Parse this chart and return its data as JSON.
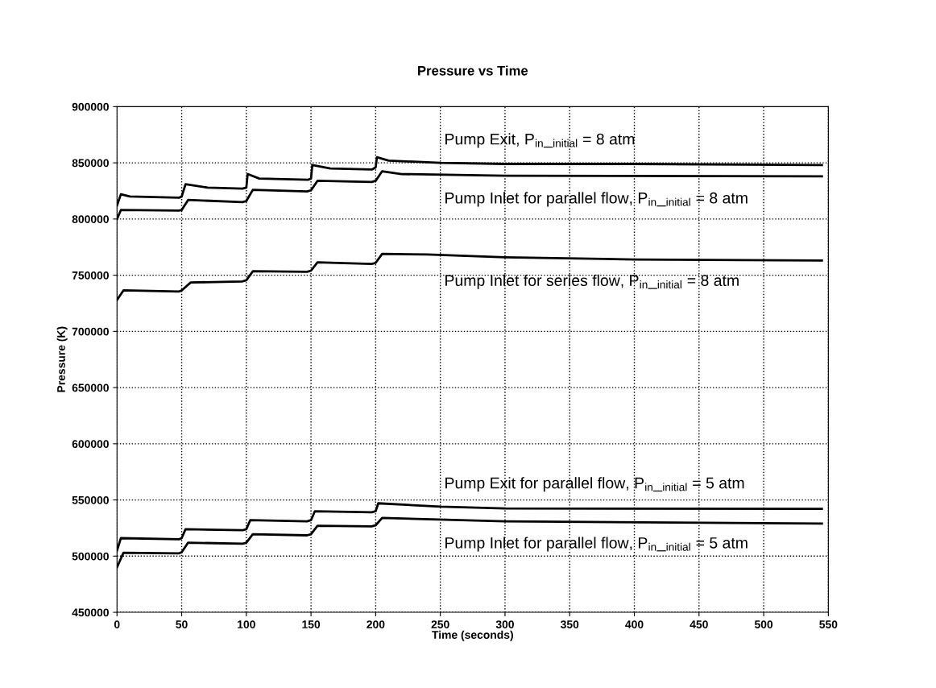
{
  "chart_data": {
    "type": "line",
    "title": "Pressure vs Time",
    "xlabel": "Time (seconds)",
    "ylabel": "Pressure (K)",
    "xlim": [
      0,
      550
    ],
    "xticks": [
      0,
      50,
      100,
      150,
      200,
      250,
      300,
      350,
      400,
      450,
      500,
      550
    ],
    "ylim": [
      450000,
      900000
    ],
    "yticks": [
      450000,
      500000,
      550000,
      600000,
      650000,
      700000,
      750000,
      800000,
      850000,
      900000
    ],
    "grid": true,
    "legend": false,
    "marker": "none",
    "line_style": "solid",
    "series": [
      {
        "name": "Pump Exit, P$_{in}$_$_{initial}$ = 8 atm",
        "color": "#000000",
        "x": [
          0,
          3,
          10,
          48,
          50,
          53,
          70,
          97,
          100,
          101,
          110,
          148,
          150,
          151,
          165,
          197,
          200,
          201,
          210,
          250,
          300,
          400,
          545
        ],
        "values": [
          812000,
          822000,
          820000,
          819000,
          820000,
          831000,
          828000,
          827000,
          828000,
          840000,
          836000,
          835000,
          836000,
          848000,
          845000,
          844000,
          846000,
          855000,
          852000,
          850000,
          849000,
          849000,
          848000
        ]
      },
      {
        "name": "Pump Inlet for parallel flow, P$_{in}$_$_{initial}$ = 8 atm",
        "color": "#000000",
        "x": [
          0,
          3,
          48,
          50,
          55,
          97,
          100,
          105,
          147,
          150,
          155,
          197,
          200,
          205,
          220,
          300,
          545
        ],
        "values": [
          800000,
          808000,
          807500,
          808000,
          817000,
          815000,
          816000,
          826000,
          824500,
          825500,
          834000,
          833000,
          834000,
          842500,
          840000,
          838500,
          838000
        ]
      },
      {
        "name": "Pump Inlet for series flow, P$_{in}$_$_{initial}$ = 8 atm",
        "color": "#000000",
        "x": [
          0,
          5,
          48,
          50,
          57,
          97,
          100,
          105,
          147,
          150,
          155,
          197,
          200,
          205,
          240,
          300,
          400,
          545
        ],
        "values": [
          728000,
          736500,
          735500,
          736500,
          743500,
          744500,
          745500,
          753500,
          753000,
          754000,
          761500,
          760000,
          761000,
          769000,
          768500,
          766000,
          764000,
          763000
        ]
      },
      {
        "name": "Pump Exit for parallel flow, P$_{in}$_$_{initial}$ = 5 atm",
        "color": "#000000",
        "x": [
          0,
          3,
          48,
          50,
          53,
          97,
          100,
          103,
          147,
          150,
          153,
          197,
          200,
          202,
          250,
          300,
          545
        ],
        "values": [
          505000,
          516000,
          515000,
          516000,
          524000,
          523000,
          524000,
          532000,
          531000,
          532000,
          540000,
          539000,
          540000,
          547000,
          544000,
          542500,
          542000
        ]
      },
      {
        "name": "Pump Inlet for parallel flow, P$_{in}$_$_{initial}$ = 5 atm",
        "color": "#000000",
        "x": [
          0,
          5,
          48,
          50,
          55,
          97,
          100,
          105,
          147,
          150,
          155,
          197,
          200,
          205,
          300,
          545
        ],
        "values": [
          490000,
          503000,
          502500,
          503500,
          512000,
          511000,
          512000,
          519500,
          518500,
          519500,
          527000,
          526500,
          527500,
          534000,
          531000,
          529000
        ]
      }
    ]
  }
}
